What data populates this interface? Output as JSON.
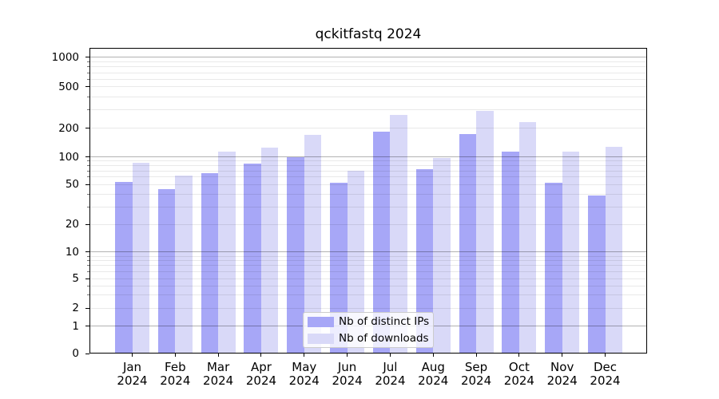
{
  "title": "qckitfastq 2024",
  "chart_data": {
    "type": "bar",
    "title": "qckitfastq 2024",
    "categories": [
      "Jan",
      "Feb",
      "Mar",
      "Apr",
      "May",
      "Jun",
      "Jul",
      "Aug",
      "Sep",
      "Oct",
      "Nov",
      "Dec"
    ],
    "x_year": "2024",
    "series": [
      {
        "name": "Nb of distinct IPs",
        "color": "#a7a7f7",
        "values": [
          53,
          45,
          66,
          84,
          100,
          52,
          184,
          74,
          175,
          114,
          52,
          39
        ]
      },
      {
        "name": "Nb of downloads",
        "color": "#d9d9f8",
        "values": [
          86,
          63,
          114,
          124,
          170,
          71,
          268,
          97,
          293,
          230,
          113,
          128
        ]
      }
    ],
    "yscale": "symlog",
    "ytick_values": [
      0,
      1,
      2,
      5,
      10,
      20,
      50,
      100,
      200,
      500,
      1000
    ],
    "ytick_labels": [
      "0",
      "1",
      "2",
      "5",
      "10",
      "20",
      "50",
      "100",
      "200",
      "500",
      "1000"
    ],
    "ylim": [
      0,
      1100
    ],
    "grid": "horizontal",
    "grid_over_bars": true,
    "legend_position": "lower-center-inside"
  }
}
